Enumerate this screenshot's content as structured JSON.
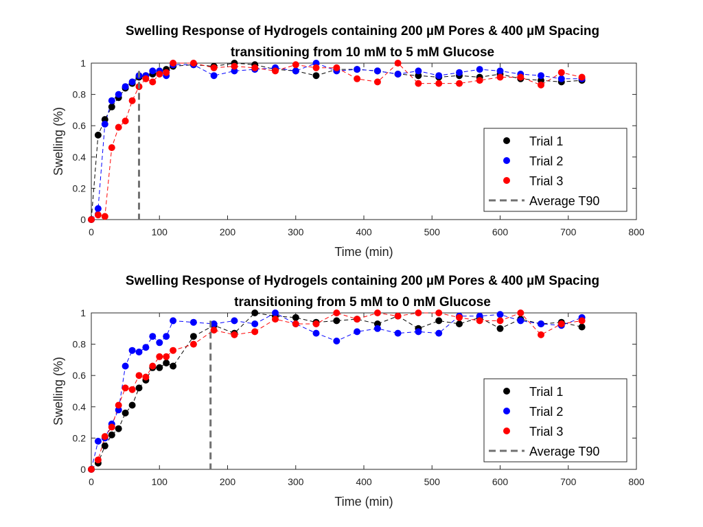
{
  "chart_data": [
    {
      "type": "scatter",
      "title": "Swelling Response of Hydrogels containing 200 µM Pores & 400 µM Spacing",
      "subtitle": "transitioning from 10 mM to 5 mM Glucose",
      "xlabel": "Time (min)",
      "ylabel": "Swelling (%)",
      "xlim": [
        0,
        800
      ],
      "ylim": [
        0,
        1
      ],
      "xticks": [
        "0",
        "100",
        "200",
        "300",
        "400",
        "500",
        "600",
        "700",
        "800"
      ],
      "yticks": [
        "0",
        "0.2",
        "0.4",
        "0.6",
        "0.8",
        "1"
      ],
      "grid": false,
      "legend_position": "right",
      "legend": [
        {
          "label": "Trial 1",
          "kind": "marker",
          "color": "#000000"
        },
        {
          "label": "Trial 2",
          "kind": "marker",
          "color": "#0000ff"
        },
        {
          "label": "Trial 3",
          "kind": "marker",
          "color": "#ff0000"
        },
        {
          "label": "Average T90",
          "kind": "dashed",
          "color": "#707070"
        }
      ],
      "t90": 70,
      "series": [
        {
          "color": "#000000",
          "x": [
            0,
            10,
            20,
            30,
            40,
            50,
            60,
            70,
            80,
            90,
            100,
            110,
            120,
            150,
            180,
            210,
            240,
            270,
            300,
            330,
            360,
            390,
            420,
            450,
            480,
            510,
            540,
            570,
            600,
            630,
            660,
            690,
            720
          ],
          "y": [
            0,
            0.54,
            0.64,
            0.72,
            0.78,
            0.84,
            0.87,
            0.91,
            0.92,
            0.93,
            0.94,
            0.96,
            0.98,
            0.99,
            0.98,
            1.0,
            0.99,
            0.96,
            0.95,
            0.92,
            0.96,
            0.96,
            0.95,
            0.93,
            0.92,
            0.91,
            0.92,
            0.91,
            0.93,
            0.9,
            0.89,
            0.88,
            0.89
          ]
        },
        {
          "color": "#0000ff",
          "x": [
            0,
            10,
            20,
            30,
            40,
            50,
            60,
            70,
            80,
            90,
            100,
            110,
            120,
            150,
            180,
            210,
            240,
            270,
            300,
            330,
            360,
            390,
            420,
            450,
            480,
            510,
            540,
            570,
            600,
            630,
            660,
            690,
            720
          ],
          "y": [
            0,
            0.07,
            0.61,
            0.76,
            0.8,
            0.85,
            0.88,
            0.92,
            0.92,
            0.95,
            0.95,
            0.92,
            0.99,
            0.99,
            0.92,
            0.95,
            0.96,
            0.97,
            0.95,
            1.0,
            0.95,
            0.96,
            0.95,
            0.93,
            0.95,
            0.92,
            0.94,
            0.96,
            0.95,
            0.93,
            0.92,
            0.9,
            0.9
          ]
        },
        {
          "color": "#ff0000",
          "x": [
            0,
            10,
            20,
            30,
            40,
            50,
            60,
            70,
            80,
            90,
            100,
            110,
            120,
            150,
            180,
            210,
            240,
            270,
            300,
            330,
            360,
            390,
            420,
            450,
            480,
            510,
            540,
            570,
            600,
            630,
            660,
            690,
            720
          ],
          "y": [
            0,
            0.03,
            0.02,
            0.46,
            0.59,
            0.63,
            0.76,
            0.85,
            0.9,
            0.88,
            0.93,
            0.94,
            1.0,
            1.0,
            0.97,
            0.98,
            0.97,
            0.95,
            0.99,
            0.97,
            0.97,
            0.9,
            0.88,
            1.0,
            0.87,
            0.87,
            0.87,
            0.89,
            0.91,
            0.91,
            0.86,
            0.94,
            0.91
          ]
        }
      ]
    },
    {
      "type": "scatter",
      "title": "Swelling Response of Hydrogels containing 200 µM Pores & 400 µM Spacing",
      "subtitle": "transitioning from 5 mM to 0 mM Glucose",
      "xlabel": "Time (min)",
      "ylabel": "Swelling (%)",
      "xlim": [
        0,
        800
      ],
      "ylim": [
        0,
        1
      ],
      "xticks": [
        "0",
        "100",
        "200",
        "300",
        "400",
        "500",
        "600",
        "700",
        "800"
      ],
      "yticks": [
        "0",
        "0.2",
        "0.4",
        "0.6",
        "0.8",
        "1"
      ],
      "grid": false,
      "legend_position": "right",
      "legend": [
        {
          "label": "Trial 1",
          "kind": "marker",
          "color": "#000000"
        },
        {
          "label": "Trial 2",
          "kind": "marker",
          "color": "#0000ff"
        },
        {
          "label": "Trial 3",
          "kind": "marker",
          "color": "#ff0000"
        },
        {
          "label": "Average T90",
          "kind": "dashed",
          "color": "#707070"
        }
      ],
      "t90": 175,
      "series": [
        {
          "color": "#000000",
          "x": [
            0,
            10,
            20,
            30,
            40,
            50,
            60,
            70,
            80,
            90,
            100,
            110,
            120,
            150,
            180,
            210,
            240,
            270,
            300,
            330,
            360,
            390,
            420,
            450,
            480,
            510,
            540,
            570,
            600,
            630,
            660,
            690,
            720
          ],
          "y": [
            0,
            0.04,
            0.15,
            0.22,
            0.26,
            0.36,
            0.41,
            0.52,
            0.57,
            0.65,
            0.65,
            0.68,
            0.66,
            0.85,
            0.92,
            0.87,
            1.0,
            0.98,
            0.97,
            0.94,
            0.95,
            0.96,
            0.93,
            0.98,
            0.9,
            0.95,
            0.93,
            0.97,
            0.9,
            0.96,
            0.93,
            0.94,
            0.91
          ]
        },
        {
          "color": "#0000ff",
          "x": [
            0,
            10,
            20,
            30,
            40,
            50,
            60,
            70,
            80,
            90,
            100,
            110,
            120,
            150,
            180,
            210,
            240,
            270,
            300,
            330,
            360,
            390,
            420,
            450,
            480,
            510,
            540,
            570,
            600,
            630,
            660,
            690,
            720
          ],
          "y": [
            0,
            0.18,
            0.2,
            0.29,
            0.38,
            0.66,
            0.76,
            0.75,
            0.78,
            0.85,
            0.81,
            0.85,
            0.95,
            0.94,
            0.93,
            0.95,
            0.93,
            1.0,
            0.93,
            0.87,
            0.82,
            0.88,
            0.9,
            0.87,
            0.88,
            0.87,
            0.98,
            0.98,
            0.99,
            0.95,
            0.93,
            0.92,
            0.97
          ]
        },
        {
          "color": "#ff0000",
          "x": [
            0,
            10,
            20,
            30,
            40,
            50,
            60,
            70,
            80,
            90,
            100,
            110,
            120,
            150,
            180,
            210,
            240,
            270,
            300,
            330,
            360,
            390,
            420,
            450,
            480,
            510,
            540,
            570,
            600,
            630,
            660,
            690,
            720
          ],
          "y": [
            0,
            0.06,
            0.21,
            0.27,
            0.41,
            0.52,
            0.51,
            0.6,
            0.59,
            0.66,
            0.72,
            0.72,
            0.76,
            0.8,
            0.89,
            0.86,
            0.88,
            0.96,
            0.93,
            0.93,
            1.0,
            0.96,
            1.0,
            0.98,
            1.0,
            1.0,
            0.97,
            0.95,
            0.95,
            1.0,
            0.86,
            0.93,
            0.95
          ]
        }
      ]
    }
  ]
}
